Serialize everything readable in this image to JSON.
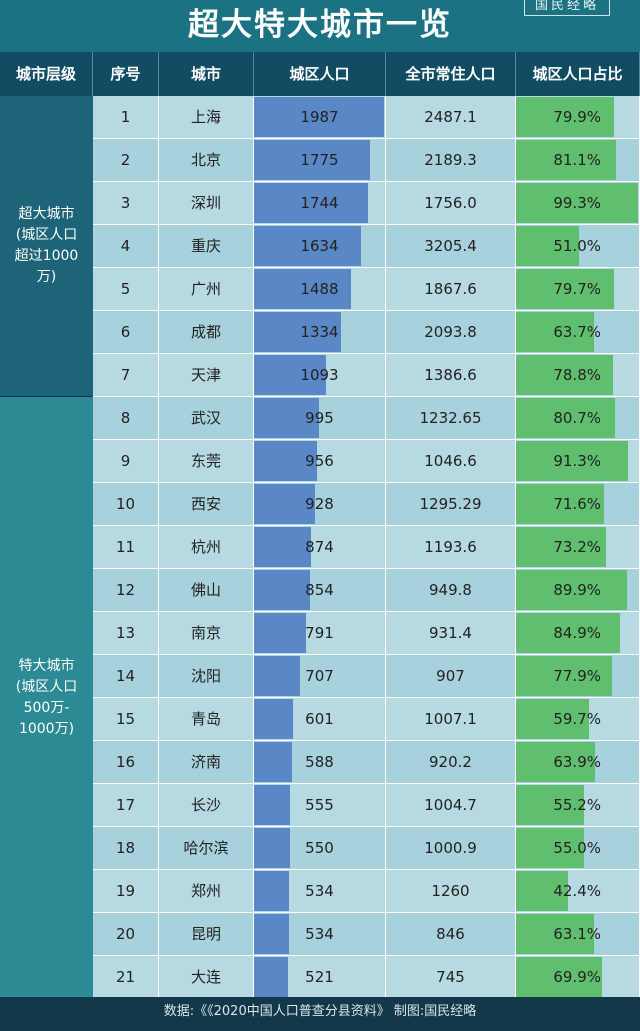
{
  "title": "超大特大城市一览",
  "stamp": "国民经略",
  "headers": [
    "城市层级",
    "序号",
    "城市",
    "城区人口",
    "全市常住人口",
    "城区人口占比"
  ],
  "tiers": [
    {
      "lines": [
        "超大城市",
        "(城区人口",
        "超过1000",
        "万)"
      ],
      "from": 0,
      "to": 6,
      "color": "#1d6478"
    },
    {
      "lines": [
        "特大城市",
        "(城区人口",
        "500万-",
        "1000万)"
      ],
      "from": 7,
      "to": 20,
      "color": "#2c8a94"
    }
  ],
  "chart_data": {
    "type": "table",
    "columns": [
      "序号",
      "城市",
      "城区人口",
      "全市常住人口",
      "城区人口占比"
    ],
    "rows": [
      {
        "rank": "1",
        "city": "上海",
        "urban": 1987,
        "total": "2487.1",
        "ratio": 79.9,
        "ratio_label": "79.9%"
      },
      {
        "rank": "2",
        "city": "北京",
        "urban": 1775,
        "total": "2189.3",
        "ratio": 81.1,
        "ratio_label": "81.1%"
      },
      {
        "rank": "3",
        "city": "深圳",
        "urban": 1744,
        "total": "1756.0",
        "ratio": 99.3,
        "ratio_label": "99.3%"
      },
      {
        "rank": "4",
        "city": "重庆",
        "urban": 1634,
        "total": "3205.4",
        "ratio": 51.0,
        "ratio_label": "51.0%"
      },
      {
        "rank": "5",
        "city": "广州",
        "urban": 1488,
        "total": "1867.6",
        "ratio": 79.7,
        "ratio_label": "79.7%"
      },
      {
        "rank": "6",
        "city": "成都",
        "urban": 1334,
        "total": "2093.8",
        "ratio": 63.7,
        "ratio_label": "63.7%"
      },
      {
        "rank": "7",
        "city": "天津",
        "urban": 1093,
        "total": "1386.6",
        "ratio": 78.8,
        "ratio_label": "78.8%"
      },
      {
        "rank": "8",
        "city": "武汉",
        "urban": 995,
        "total": "1232.65",
        "ratio": 80.7,
        "ratio_label": "80.7%"
      },
      {
        "rank": "9",
        "city": "东莞",
        "urban": 956,
        "total": "1046.6",
        "ratio": 91.3,
        "ratio_label": "91.3%"
      },
      {
        "rank": "10",
        "city": "西安",
        "urban": 928,
        "total": "1295.29",
        "ratio": 71.6,
        "ratio_label": "71.6%"
      },
      {
        "rank": "11",
        "city": "杭州",
        "urban": 874,
        "total": "1193.6",
        "ratio": 73.2,
        "ratio_label": "73.2%"
      },
      {
        "rank": "12",
        "city": "佛山",
        "urban": 854,
        "total": "949.8",
        "ratio": 89.9,
        "ratio_label": "89.9%"
      },
      {
        "rank": "13",
        "city": "南京",
        "urban": 791,
        "total": "931.4",
        "ratio": 84.9,
        "ratio_label": "84.9%"
      },
      {
        "rank": "14",
        "city": "沈阳",
        "urban": 707,
        "total": "907",
        "ratio": 77.9,
        "ratio_label": "77.9%"
      },
      {
        "rank": "15",
        "city": "青岛",
        "urban": 601,
        "total": "1007.1",
        "ratio": 59.7,
        "ratio_label": "59.7%"
      },
      {
        "rank": "16",
        "city": "济南",
        "urban": 588,
        "total": "920.2",
        "ratio": 63.9,
        "ratio_label": "63.9%"
      },
      {
        "rank": "17",
        "city": "长沙",
        "urban": 555,
        "total": "1004.7",
        "ratio": 55.2,
        "ratio_label": "55.2%"
      },
      {
        "rank": "18",
        "city": "哈尔滨",
        "urban": 550,
        "total": "1000.9",
        "ratio": 55.0,
        "ratio_label": "55.0%"
      },
      {
        "rank": "19",
        "city": "郑州",
        "urban": 534,
        "total": "1260",
        "ratio": 42.4,
        "ratio_label": "42.4%"
      },
      {
        "rank": "20",
        "city": "昆明",
        "urban": 534,
        "total": "846",
        "ratio": 63.1,
        "ratio_label": "63.1%"
      },
      {
        "rank": "21",
        "city": "大连",
        "urban": 521,
        "total": "745",
        "ratio": 69.9,
        "ratio_label": "69.9%"
      }
    ],
    "urban_bar_max": 1987,
    "ratio_bar_max": 100,
    "colors": {
      "urban_bar": "#5a87c6",
      "ratio_bar": "#5fbf6e"
    }
  },
  "footer": "数据:《《2020中国人口普查分县资料》 制图:国民经略"
}
